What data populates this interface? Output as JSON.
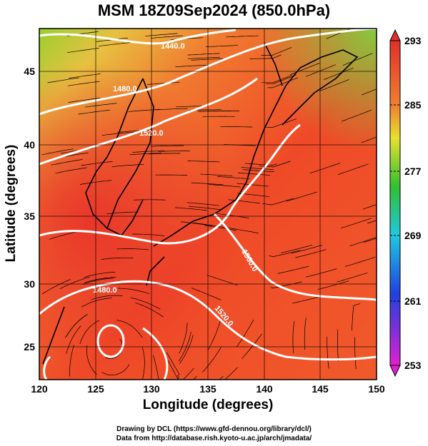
{
  "title": "MSM 18Z09Sep2024 (850.0hPa)",
  "xlabel": "Longitude (degrees)",
  "ylabel": "Latitude  (degrees)",
  "credits": {
    "line1": "Drawing by DCL (https://www.gfd-dennou.org/library/dcl/)",
    "line2": "Data from http://database.rish.kyoto-u.ac.jp/arch/jmadata/"
  },
  "map": {
    "lon_range": [
      120,
      150
    ],
    "lat_range": [
      22.4,
      47.6
    ],
    "lon_ticks": [
      "120",
      "125",
      "130",
      "135",
      "140",
      "145",
      "150"
    ],
    "lat_ticks": [
      "25",
      "30",
      "35",
      "40",
      "45"
    ],
    "contour_labels": [
      "1440.0",
      "1480.0",
      "1520.0",
      "1560.0",
      "1520.0",
      "1480.0"
    ]
  },
  "colorbar": {
    "min": 253,
    "max": 293,
    "tick_labels": [
      "293",
      "285",
      "277",
      "269",
      "261",
      "253"
    ],
    "colors": {
      "top": "#e0302a",
      "orange": "#f08030",
      "yellow": "#e8e030",
      "green": "#30c030",
      "cyan": "#20c8e0",
      "blue": "#2040e0",
      "bottom": "#e020d0"
    }
  }
}
